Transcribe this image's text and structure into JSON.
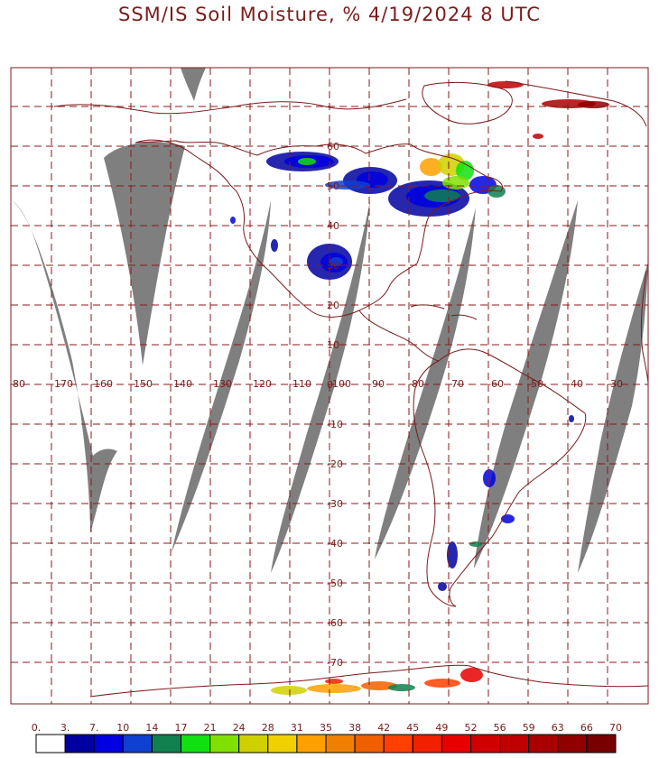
{
  "title": "SSM/IS Soil Moisture, % 4/19/2024 8 UTC",
  "colors": {
    "frame": "#7a1c1c",
    "grid": "#8b1a1a",
    "coast": "#7a1c1c",
    "swath_gap": "#7f7f7f"
  },
  "map": {
    "lon_labels": [
      "80",
      "-170",
      "-160",
      "-150",
      "-140",
      "-130",
      "-120",
      "-110",
      "-100",
      "-90",
      "-80",
      "-70",
      "-60",
      "-50",
      "-40",
      "-30"
    ],
    "lat_labels": [
      "60",
      "50",
      "40",
      "30",
      "20",
      "10",
      "0",
      "-10",
      "-20",
      "-30",
      "-40",
      "-50",
      "-60",
      "-70"
    ]
  },
  "legend": {
    "ticks": [
      "0.",
      "3.",
      "7.",
      "10",
      "14",
      "17",
      "21",
      "24",
      "28",
      "31",
      "35",
      "38",
      "42",
      "45",
      "49",
      "52",
      "56",
      "59",
      "63",
      "66",
      "70"
    ],
    "colors": [
      "#ffffff",
      "#0000a0",
      "#0000e0",
      "#1040d0",
      "#108050",
      "#10e010",
      "#80e000",
      "#d0d000",
      "#f0d000",
      "#ffa000",
      "#f08000",
      "#f06000",
      "#ff4000",
      "#f02000",
      "#e80000",
      "#d00000",
      "#c00000",
      "#a80000",
      "#900000",
      "#780000"
    ]
  }
}
